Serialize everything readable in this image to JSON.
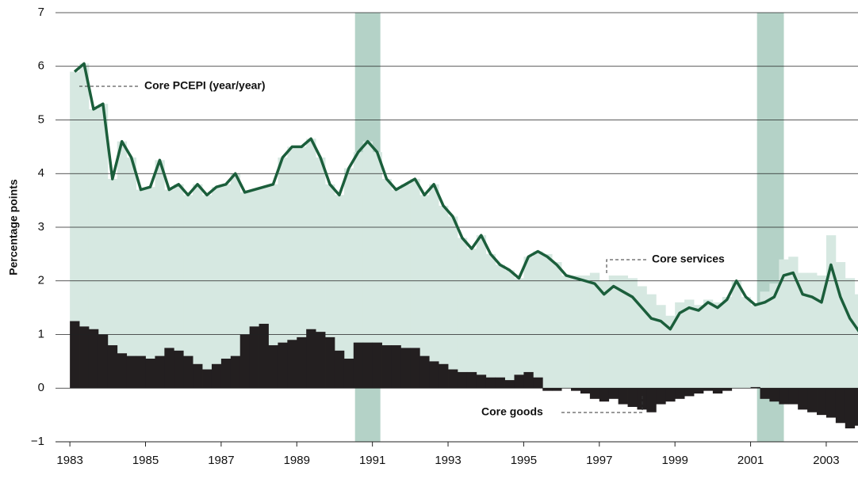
{
  "chart_data": {
    "type": "stacked_bar_line",
    "y_label": "Percentage points",
    "x": [
      1983,
      1983.25,
      1983.5,
      1983.75,
      1984,
      1984.25,
      1984.5,
      1984.75,
      1985,
      1985.25,
      1985.5,
      1985.75,
      1986,
      1986.25,
      1986.5,
      1986.75,
      1987,
      1987.25,
      1987.5,
      1987.75,
      1988,
      1988.25,
      1988.5,
      1988.75,
      1989,
      1989.25,
      1989.5,
      1989.75,
      1990,
      1990.25,
      1990.5,
      1990.75,
      1991,
      1991.25,
      1991.5,
      1991.75,
      1992,
      1992.25,
      1992.5,
      1992.75,
      1993,
      1993.25,
      1993.5,
      1993.75,
      1994,
      1994.25,
      1994.5,
      1994.75,
      1995,
      1995.25,
      1995.5,
      1995.75,
      1996,
      1996.25,
      1996.5,
      1996.75,
      1997,
      1997.25,
      1997.5,
      1997.75,
      1998,
      1998.25,
      1998.5,
      1998.75,
      1999,
      1999.25,
      1999.5,
      1999.75,
      2000,
      2000.25,
      2000.5,
      2000.75,
      2001,
      2001.25,
      2001.5,
      2001.75,
      2002,
      2002.25,
      2002.5,
      2002.75,
      2003,
      2003.25,
      2003.5,
      2003.75
    ],
    "series": [
      {
        "name": "Core PCEPI (year/year)",
        "type": "line",
        "color": "#1b5e3b",
        "values": [
          5.9,
          6.05,
          5.2,
          5.3,
          3.9,
          4.6,
          4.3,
          3.7,
          3.75,
          4.25,
          3.7,
          3.8,
          3.6,
          3.8,
          3.6,
          3.75,
          3.8,
          4.0,
          3.65,
          3.7,
          3.75,
          3.8,
          4.3,
          4.5,
          4.5,
          4.65,
          4.3,
          3.8,
          3.6,
          4.1,
          4.4,
          4.6,
          4.4,
          3.9,
          3.7,
          3.8,
          3.9,
          3.6,
          3.8,
          3.4,
          3.2,
          2.8,
          2.6,
          2.85,
          2.5,
          2.3,
          2.2,
          2.05,
          2.45,
          2.55,
          2.45,
          2.3,
          2.1,
          2.05,
          2.0,
          1.95,
          1.75,
          1.9,
          1.8,
          1.7,
          1.5,
          1.3,
          1.25,
          1.1,
          1.4,
          1.5,
          1.45,
          1.6,
          1.5,
          1.65,
          2.0,
          1.7,
          1.55,
          1.6,
          1.7,
          2.1,
          2.15,
          1.75,
          1.7,
          1.6,
          2.3,
          1.7,
          1.3,
          1.05
        ]
      },
      {
        "name": "Core services",
        "type": "bar",
        "color": "#d6e8e1",
        "values": [
          4.65,
          4.9,
          4.1,
          4.3,
          3.1,
          3.95,
          3.7,
          3.1,
          3.2,
          3.65,
          2.95,
          3.1,
          3.0,
          3.35,
          3.25,
          3.3,
          3.25,
          3.4,
          2.65,
          2.55,
          2.55,
          3.0,
          3.45,
          3.6,
          3.55,
          3.55,
          3.25,
          2.85,
          2.9,
          3.55,
          3.55,
          3.75,
          3.55,
          3.1,
          2.9,
          3.05,
          3.15,
          3.0,
          3.3,
          2.95,
          2.85,
          2.5,
          2.3,
          2.6,
          2.3,
          2.1,
          2.05,
          1.8,
          2.15,
          2.35,
          2.5,
          2.35,
          2.1,
          2.1,
          2.1,
          2.15,
          2.0,
          2.1,
          2.1,
          2.05,
          1.9,
          1.75,
          1.55,
          1.35,
          1.6,
          1.65,
          1.55,
          1.65,
          1.6,
          1.7,
          2.0,
          1.7,
          1.53,
          1.8,
          1.95,
          2.4,
          2.45,
          2.15,
          2.15,
          2.1,
          2.85,
          2.35,
          2.05,
          1.75
        ]
      },
      {
        "name": "Core goods",
        "type": "bar",
        "color": "#231f20",
        "values": [
          1.25,
          1.15,
          1.1,
          1.0,
          0.8,
          0.65,
          0.6,
          0.6,
          0.55,
          0.6,
          0.75,
          0.7,
          0.6,
          0.45,
          0.35,
          0.45,
          0.55,
          0.6,
          1.0,
          1.15,
          1.2,
          0.8,
          0.85,
          0.9,
          0.95,
          1.1,
          1.05,
          0.95,
          0.7,
          0.55,
          0.85,
          0.85,
          0.85,
          0.8,
          0.8,
          0.75,
          0.75,
          0.6,
          0.5,
          0.45,
          0.35,
          0.3,
          0.3,
          0.25,
          0.2,
          0.2,
          0.15,
          0.25,
          0.3,
          0.2,
          -0.05,
          -0.05,
          0,
          -0.05,
          -0.1,
          -0.2,
          -0.25,
          -0.2,
          -0.3,
          -0.35,
          -0.4,
          -0.45,
          -0.3,
          -0.25,
          -0.2,
          -0.15,
          -0.1,
          -0.05,
          -0.1,
          -0.05,
          0,
          0,
          0.02,
          -0.2,
          -0.25,
          -0.3,
          -0.3,
          -0.4,
          -0.45,
          -0.5,
          -0.55,
          -0.65,
          -0.75,
          -0.7
        ]
      }
    ],
    "recessions": [
      [
        1990.54,
        1991.21
      ],
      [
        2001.17,
        2001.88
      ]
    ],
    "recession_color": "#b4d2c7",
    "xlim": [
      1982.62,
      2003.84
    ],
    "ylim": [
      -1,
      7
    ],
    "xticks": [
      1983,
      1985,
      1987,
      1989,
      1991,
      1993,
      1995,
      1997,
      1999,
      2001,
      2003
    ],
    "yticks": [
      {
        "value": -1,
        "label": "−1"
      },
      0,
      1,
      2,
      3,
      4,
      5,
      6,
      7
    ],
    "grid": true
  }
}
